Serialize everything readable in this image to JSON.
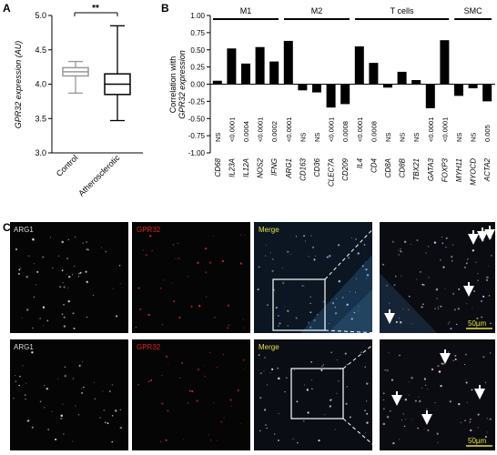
{
  "panels": {
    "a": {
      "letter": "A"
    },
    "b": {
      "letter": "B"
    },
    "c": {
      "letter": "C"
    }
  },
  "chart_data": [
    {
      "type": "boxplot",
      "panel": "A",
      "ylabel": "GPR32 expression (AU)",
      "ylim": [
        3.0,
        5.0
      ],
      "yticks": [
        "3.0",
        "3.5",
        "4.0",
        "4.5",
        "5.0"
      ],
      "categories": [
        "Control",
        "Atherosclerotic"
      ],
      "boxes": [
        {
          "name": "Control",
          "min": 3.87,
          "q1": 4.12,
          "median": 4.18,
          "q3": 4.24,
          "max": 4.33,
          "color": "#999999"
        },
        {
          "name": "Atherosclerotic",
          "min": 3.47,
          "q1": 3.85,
          "median": 4.0,
          "q3": 4.15,
          "max": 4.85,
          "color": "#000000"
        }
      ],
      "significance": "**"
    },
    {
      "type": "bar",
      "panel": "B",
      "ylabel_line1": "Correlation with",
      "ylabel_line2": "GPR32 expression",
      "ylim": [
        -1.0,
        1.0
      ],
      "yticks": [
        "1.00",
        "0.75",
        "0.50",
        "0.25",
        "0.00",
        "-0.25",
        "-0.50",
        "-0.75",
        "-1.00"
      ],
      "groups": [
        {
          "label": "M1",
          "range": [
            0,
            5
          ]
        },
        {
          "label": "M2",
          "range": [
            5,
            10
          ]
        },
        {
          "label": "T cells",
          "range": [
            10,
            17
          ]
        },
        {
          "label": "SMC",
          "range": [
            17,
            20
          ]
        }
      ],
      "categories": [
        "CD68",
        "IL23A",
        "IL12A",
        "NOS2",
        "IFNG",
        "ARG1",
        "CD163",
        "CD36",
        "CLEC7A",
        "CD209",
        "IL4",
        "CD4",
        "CD8A",
        "CD8B",
        "TBX21",
        "GATA3",
        "FOXP3",
        "MYH11",
        "MYOCD",
        "ACTA2"
      ],
      "values": [
        0.05,
        0.52,
        0.3,
        0.54,
        0.33,
        0.63,
        -0.09,
        -0.12,
        -0.34,
        -0.29,
        0.55,
        0.31,
        -0.05,
        0.18,
        0.06,
        -0.35,
        0.64,
        -0.17,
        -0.06,
        -0.25
      ],
      "pvalues": [
        "NS",
        "<0.0001",
        "0.0004",
        "<0.0001",
        "0.0002",
        "<0.0001",
        "NS",
        "NS",
        "<0.0001",
        "0.0008",
        "<0.0001",
        "0.0008",
        "NS",
        "NS",
        "NS",
        "<0.0001",
        "<0.0001",
        "NS",
        "NS",
        "0.005"
      ]
    }
  ],
  "micrographs": {
    "row1": {
      "arg1": "ARG1",
      "gpr32": "GPR32",
      "merge": "Merge",
      "scale": "50µm"
    },
    "row2": {
      "arg1": "ARG1",
      "gpr32": "GPR32",
      "merge": "Merge",
      "scale": "50µm"
    },
    "colors": {
      "arg1_label": "#dddddd",
      "gpr32_label": "#e02020",
      "merge_label": "#e8e040",
      "scale": "#e8e040",
      "arrow": "#ffffff"
    }
  }
}
